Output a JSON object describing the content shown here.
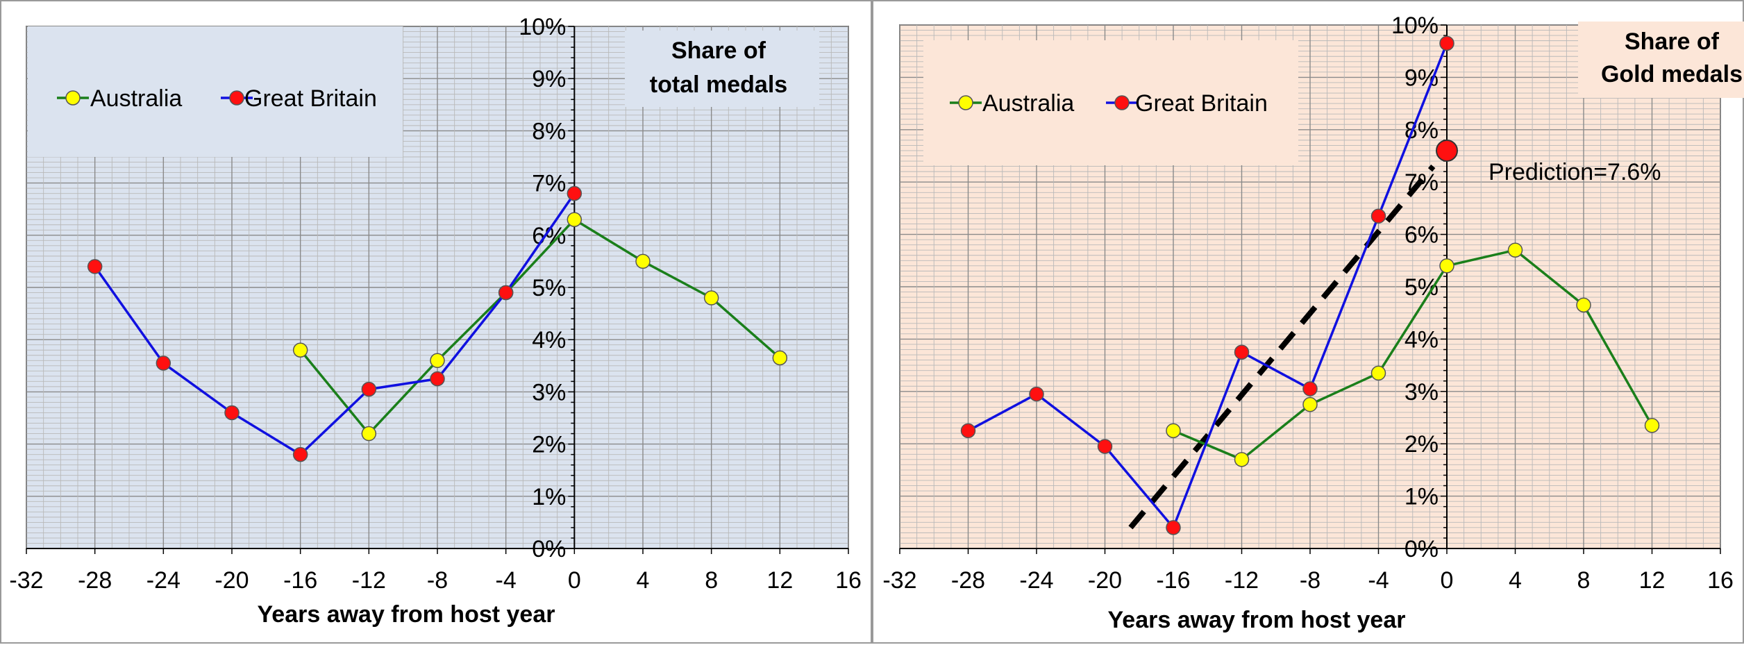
{
  "chart_data": [
    {
      "type": "line",
      "title": [
        "Share of",
        "total medals"
      ],
      "xlabel": "Years away from host year",
      "ylabel": "",
      "xlim": [
        -32,
        16
      ],
      "ylim": [
        0,
        0.1
      ],
      "xticks": [
        "-32",
        "-28",
        "-24",
        "-20",
        "-16",
        "-12",
        "-8",
        "-4",
        "0",
        "4",
        "8",
        "12",
        "16"
      ],
      "xtick_values": [
        -32,
        -28,
        -24,
        -20,
        -16,
        -12,
        -8,
        -4,
        0,
        4,
        8,
        12,
        16
      ],
      "yticks": [
        "0%",
        "1%",
        "2%",
        "3%",
        "4%",
        "5%",
        "6%",
        "7%",
        "8%",
        "9%",
        "10%"
      ],
      "ytick_values": [
        0,
        0.01,
        0.02,
        0.03,
        0.04,
        0.05,
        0.06,
        0.07,
        0.08,
        0.09,
        0.1
      ],
      "grid": true,
      "background": "#dbe3ef",
      "legend_placement": "top-left",
      "series": [
        {
          "name": "Australia",
          "line_color": "#1a7f1a",
          "marker_color": "#ffff00",
          "x": [
            -16,
            -12,
            -8,
            -4,
            0,
            4,
            8,
            12
          ],
          "y": [
            0.038,
            0.022,
            0.036,
            0.049,
            0.063,
            0.055,
            0.048,
            0.0365
          ]
        },
        {
          "name": "Great Britain",
          "line_color": "#1010e0",
          "marker_color": "#ff1010",
          "x": [
            -28,
            -24,
            -20,
            -16,
            -12,
            -8,
            -4,
            0
          ],
          "y": [
            0.054,
            0.0355,
            0.026,
            0.018,
            0.0305,
            0.0325,
            0.049,
            0.068
          ]
        }
      ]
    },
    {
      "type": "line",
      "title": [
        "Share of",
        "Gold medals"
      ],
      "xlabel": "Years away from host year",
      "ylabel": "",
      "xlim": [
        -32,
        16
      ],
      "ylim": [
        0,
        0.1
      ],
      "xticks": [
        "-32",
        "-28",
        "-24",
        "-20",
        "-16",
        "-12",
        "-8",
        "-4",
        "0",
        "4",
        "8",
        "12",
        "16"
      ],
      "xtick_values": [
        -32,
        -28,
        -24,
        -20,
        -16,
        -12,
        -8,
        -4,
        0,
        4,
        8,
        12,
        16
      ],
      "yticks": [
        "0%",
        "1%",
        "2%",
        "3%",
        "4%",
        "5%",
        "6%",
        "7%",
        "8%",
        "9%",
        "10%"
      ],
      "ytick_values": [
        0,
        0.01,
        0.02,
        0.03,
        0.04,
        0.05,
        0.06,
        0.07,
        0.08,
        0.09,
        0.1
      ],
      "grid": true,
      "background": "#fce6d8",
      "legend_placement": "top-left",
      "series": [
        {
          "name": "Australia",
          "line_color": "#1a7f1a",
          "marker_color": "#ffff00",
          "x": [
            -16,
            -12,
            -8,
            -4,
            0,
            4,
            8,
            12
          ],
          "y": [
            0.0225,
            0.017,
            0.0275,
            0.0335,
            0.054,
            0.057,
            0.0465,
            0.0235
          ]
        },
        {
          "name": "Great Britain",
          "line_color": "#1010e0",
          "marker_color": "#ff1010",
          "x": [
            -28,
            -24,
            -20,
            -16,
            -12,
            -8,
            -4,
            0
          ],
          "y": [
            0.0225,
            0.0295,
            0.0195,
            0.004,
            0.0375,
            0.0305,
            0.0635,
            0.0965
          ]
        }
      ],
      "trend_line": {
        "x": [
          -18.5,
          -0.8
        ],
        "y": [
          0.004,
          0.073
        ]
      },
      "prediction_point": {
        "x": 0,
        "y": 0.076,
        "color": "#ff1010"
      },
      "annotation": "Prediction=7.6%"
    }
  ]
}
